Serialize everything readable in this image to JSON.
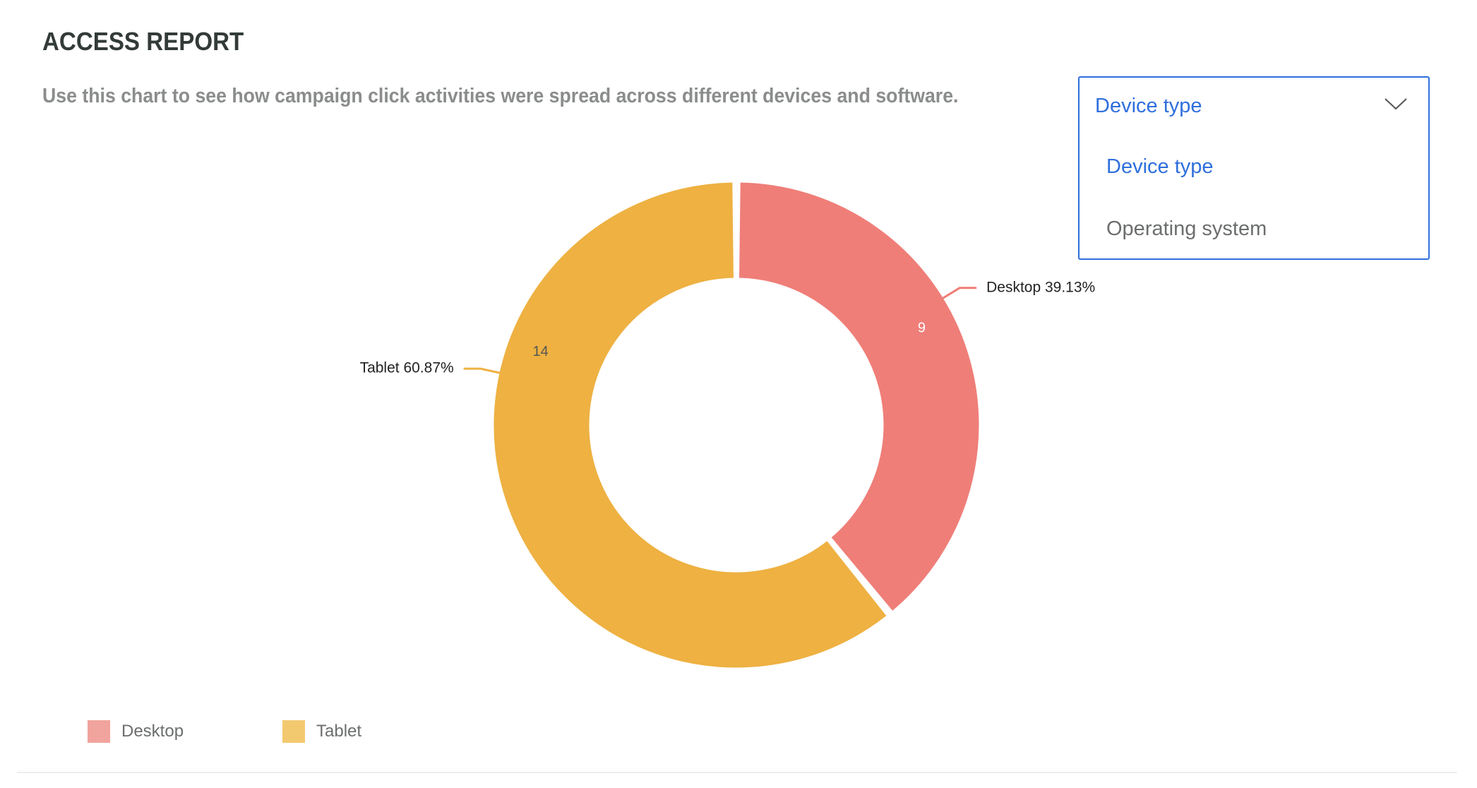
{
  "header": {
    "title": "ACCESS REPORT",
    "subtitle": "Use this chart to see how campaign click activities were spread across different devices and software."
  },
  "dropdown": {
    "selected": "Device type",
    "options": [
      "Device type",
      "Operating system"
    ],
    "icon": "chevron-down-icon",
    "accent": "#2f6fdc"
  },
  "legend": {
    "items": [
      {
        "label": "Desktop",
        "color": "#f1a39d"
      },
      {
        "label": "Tablet",
        "color": "#f3c96f"
      }
    ]
  },
  "chart_data": {
    "type": "pie",
    "variant": "donut",
    "categories": [
      "Desktop",
      "Tablet"
    ],
    "values": [
      9,
      14
    ],
    "percent_labels": [
      "Desktop 39.13%",
      "Tablet 60.87%"
    ],
    "colors": [
      "#ef7e78",
      "#eeb142"
    ],
    "legend_position": "bottom-left"
  }
}
